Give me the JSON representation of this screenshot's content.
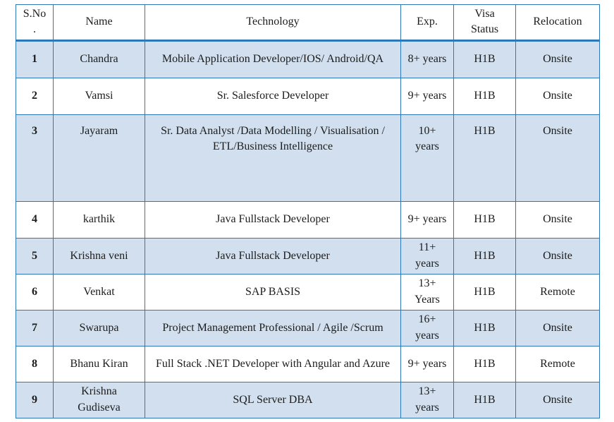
{
  "colors": {
    "border_blue": "#2e78b8",
    "row_shade_blue": "#d1dfee"
  },
  "table": {
    "column_keys": [
      "sno",
      "name",
      "technology",
      "exp",
      "visa-status",
      "relocation"
    ],
    "columns": [
      "S.No.",
      "Name",
      "Technology",
      "Exp.",
      "Visa Status",
      "Relocation"
    ],
    "rows": [
      [
        "1",
        "Chandra",
        "Mobile Application Developer/IOS/ Android/QA",
        "8+ years",
        "H1B",
        "Onsite"
      ],
      [
        "2",
        "Vamsi",
        "Sr. Salesforce Developer",
        "9+ years",
        "H1B",
        "Onsite"
      ],
      [
        "3",
        "Jayaram",
        "Sr. Data Analyst /Data Modelling / Visualisation / ETL/Business Intelligence",
        "10+ years",
        "H1B",
        "Onsite"
      ],
      [
        "4",
        "karthik",
        "Java Fullstack Developer",
        "9+ years",
        "H1B",
        "Onsite"
      ],
      [
        "5",
        "Krishna veni",
        "Java Fullstack Developer",
        "11+ years",
        "H1B",
        "Onsite"
      ],
      [
        "6",
        "Venkat",
        "SAP BASIS",
        "13+ Years",
        "H1B",
        "Remote"
      ],
      [
        "7",
        "Swarupa",
        "Project Management Professional / Agile /Scrum",
        "16+ years",
        "H1B",
        "Onsite"
      ],
      [
        "8",
        "Bhanu Kiran",
        "Full Stack .NET Developer with Angular and Azure",
        "9+ years",
        "H1B",
        "Remote"
      ],
      [
        "9",
        "Krishna Gudiseva",
        "SQL Server DBA",
        "13+ years",
        "H1B",
        "Onsite"
      ]
    ]
  }
}
